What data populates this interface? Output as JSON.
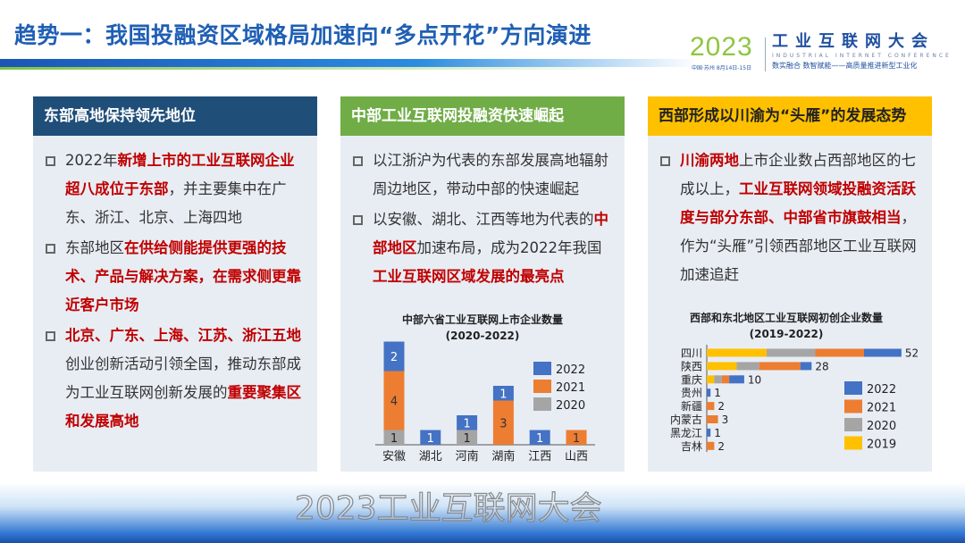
{
  "title": "趋势一：我国投融资区域格局加速向“多点开花”方向演进",
  "logo": {
    "year": "2023",
    "name": "工业互联网大会",
    "english": "INDUSTRIAL INTERNET CONFERENCE",
    "slogan": "数实融合  数智赋能——高质量推进新型工业化",
    "city": "中国·苏州  8月14日-15日"
  },
  "watermark": "2023工业互联网大会",
  "panels": [
    {
      "header": "东部高地保持领先地位",
      "items": [
        [
          {
            "t": "2022年",
            "hl": false
          },
          {
            "t": "新增上市的工业互联网企业超八成位于东部",
            "hl": true
          },
          {
            "t": "，并主要集中在广东、浙江、北京、上海四地",
            "hl": false
          }
        ],
        [
          {
            "t": "东部地区",
            "hl": false
          },
          {
            "t": "在供给侧能提供更强的技术、产品与解决方案，在需求侧更靠近客户市场",
            "hl": true
          }
        ],
        [
          {
            "t": "北京、广东、上海、江苏、浙江五地",
            "hl": true
          },
          {
            "t": "创业创新活动引领全国，推动东部成为工业互联网创新发展的",
            "hl": false
          },
          {
            "t": "重要聚集区和发展高地",
            "hl": true
          }
        ]
      ]
    },
    {
      "header": "中部工业互联网投融资快速崛起",
      "items": [
        [
          {
            "t": "以江浙沪为代表的东部发展高地辐射周边地区，带动中部的快速崛起",
            "hl": false
          }
        ],
        [
          {
            "t": "以安徽、湖北、江西等地为代表的",
            "hl": false
          },
          {
            "t": "中部地区",
            "hl": true
          },
          {
            "t": "加速布局，成为2022年我国",
            "hl": false
          },
          {
            "t": "工业互联网区域发展的最亮点",
            "hl": true
          }
        ]
      ]
    },
    {
      "header": "西部形成以川渝为“头雁”的发展态势",
      "items": [
        [
          {
            "t": "川渝两地",
            "hl": true
          },
          {
            "t": "上市企业数占西部地区的七成以上，",
            "hl": false
          },
          {
            "t": "工业互联网领域投融资活跃度与部分东部、中部省市旗鼓相当",
            "hl": true
          },
          {
            "t": "，作为“头雁”引领西部地区工业互联网加速追赶",
            "hl": false
          }
        ]
      ]
    }
  ],
  "chart_data": [
    {
      "type": "bar",
      "stacked": true,
      "orientation": "vertical",
      "title": "中部六省工业互联网上市企业数量",
      "subtitle": "(2020-2022)",
      "categories": [
        "安徽",
        "湖北",
        "河南",
        "湖南",
        "江西",
        "山西"
      ],
      "series": [
        {
          "name": "2020",
          "color": "#a5a5a5",
          "values": [
            1,
            0,
            1,
            0,
            0,
            0
          ]
        },
        {
          "name": "2021",
          "color": "#ed7d31",
          "values": [
            4,
            0,
            0,
            3,
            0,
            1
          ]
        },
        {
          "name": "2022",
          "color": "#4472c4",
          "values": [
            2,
            1,
            1,
            1,
            1,
            0
          ]
        }
      ],
      "legend": "right",
      "grid": false
    },
    {
      "type": "bar",
      "stacked": true,
      "orientation": "horizontal",
      "title": "西部和东北地区工业互联网初创企业数量",
      "subtitle": "(2019-2022)",
      "categories": [
        "四川",
        "陕西",
        "重庆",
        "贵州",
        "新疆",
        "内蒙古",
        "黑龙江",
        "吉林"
      ],
      "totals": [
        52,
        28,
        10,
        1,
        2,
        3,
        1,
        2
      ],
      "series": [
        {
          "name": "2019",
          "color": "#ffc000",
          "values": [
            16,
            8,
            2,
            0,
            0,
            0,
            0,
            0
          ]
        },
        {
          "name": "2020",
          "color": "#a5a5a5",
          "values": [
            13,
            6,
            2,
            0,
            0,
            0,
            0,
            0
          ]
        },
        {
          "name": "2021",
          "color": "#ed7d31",
          "values": [
            13,
            11,
            2,
            0,
            2,
            3,
            0,
            2
          ]
        },
        {
          "name": "2022",
          "color": "#4472c4",
          "values": [
            10,
            3,
            4,
            1,
            0,
            0,
            1,
            0
          ]
        }
      ],
      "legend": "right",
      "grid": false
    }
  ]
}
